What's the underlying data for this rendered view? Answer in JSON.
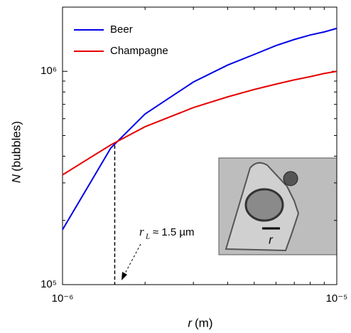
{
  "chart_data": {
    "type": "line",
    "xlabel": {
      "symbol": "r",
      "unit": "(m)"
    },
    "ylabel": {
      "symbol": "N",
      "unit": "(bubbles)"
    },
    "x": [
      1e-06,
      1.5e-06,
      2e-06,
      3e-06,
      4e-06,
      5e-06,
      6e-06,
      7e-06,
      8e-06,
      9e-06,
      1e-05
    ],
    "series": [
      {
        "name": "Beer",
        "color": "#0000e6",
        "values": [
          181000,
          437000,
          631000,
          891000,
          1070000,
          1200000,
          1320000,
          1410000,
          1480000,
          1530000,
          1590000
        ]
      },
      {
        "name": "Champagne",
        "color": "#e60000",
        "values": [
          327000,
          452000,
          550000,
          676000,
          759000,
          822000,
          871000,
          912000,
          944000,
          977000,
          1000000
        ]
      }
    ],
    "xlim": [
      1e-06,
      1e-05
    ],
    "ylim": [
      100000,
      2000000
    ],
    "xticks": [
      {
        "value": 1e-06,
        "label": "10⁻⁶"
      },
      {
        "value": 1e-05,
        "label": "10⁻⁵"
      }
    ],
    "yticks": [
      {
        "value": 100000,
        "label": "10⁵"
      },
      {
        "value": 1000000,
        "label": "10⁶"
      }
    ],
    "xminor_ticks": [
      2e-06,
      3e-06,
      4e-06,
      5e-06,
      6e-06,
      7e-06,
      8e-06,
      9e-06
    ],
    "yminor_ticks": [
      200000,
      300000,
      400000,
      500000,
      600000,
      700000,
      800000,
      900000,
      2000000
    ],
    "xscale": "log",
    "yscale": "log",
    "legend": "upper left",
    "annotation": {
      "symbol": "r",
      "subscript": "L",
      "text": "≈ 1.5 µm",
      "x": 1.55e-06,
      "y": 450000
    },
    "inset_label": "r"
  }
}
